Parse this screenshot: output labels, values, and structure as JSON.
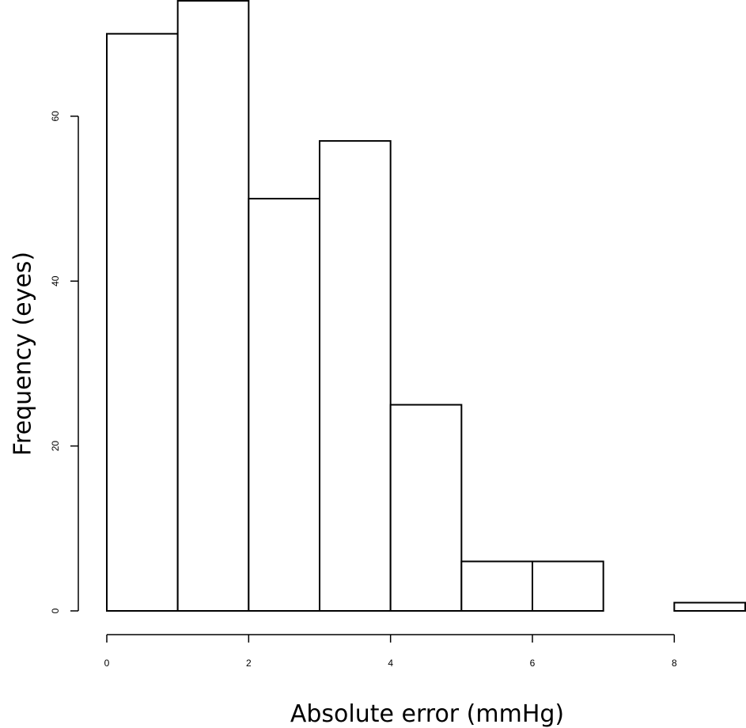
{
  "chart_data": {
    "type": "bar",
    "bin_edges": [
      0,
      1,
      2,
      3,
      4,
      5,
      6,
      7,
      8,
      9
    ],
    "values": [
      70,
      74,
      50,
      57,
      25,
      6,
      6,
      0,
      1
    ],
    "xlabel": "Absolute error (mmHg)",
    "ylabel": "Frequency (eyes)",
    "xticks": [
      0,
      2,
      4,
      6,
      8
    ],
    "yticks": [
      0,
      20,
      40,
      60
    ],
    "xlim": [
      0,
      9
    ],
    "ylim": [
      0,
      74
    ],
    "grid": false
  }
}
